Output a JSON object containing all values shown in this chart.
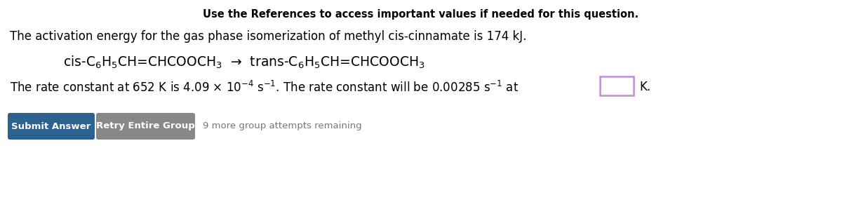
{
  "title": "Use the References to access important values if needed for this question.",
  "line1": "The activation energy for the gas phase isomerization of methyl cis-cinnamate is 174 kJ.",
  "chem_eq": "cis-C$_6$H$_5$CH=CHCOOCH$_3$  →  trans-C$_6$H$_5$CH=CHCOOCH$_3$",
  "line3": "The rate constant at 652 K is 4.09 × 10$^{-4}$ s$^{-1}$. The rate constant will be 0.00285 s$^{-1}$ at",
  "line3_K": "K.",
  "btn1_text": "Submit Answer",
  "btn1_color": "#2d618f",
  "btn2_text": "Retry Entire Group",
  "btn2_color": "#888888",
  "note_text": "9 more group attempts remaining",
  "bg_color": "#ffffff",
  "text_color": "#000000",
  "title_fontsize": 10.5,
  "body_fontsize": 12,
  "chem_fontsize": 13.5,
  "btn_fontsize": 9.5,
  "note_fontsize": 9.5
}
